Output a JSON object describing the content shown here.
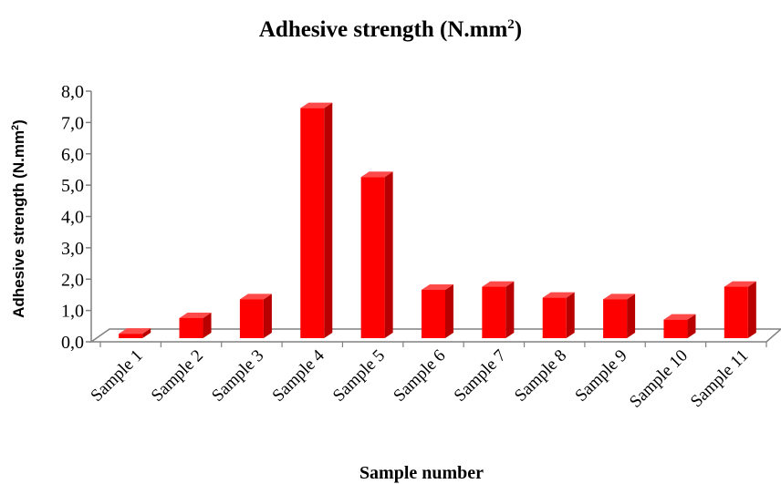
{
  "chart_data": {
    "type": "bar",
    "title_main": "Adhesive strength (N.mm",
    "title_sup": "2",
    "title_close": ")",
    "xlabel": "Sample number",
    "ylabel_main": "Adhesive strength (N.mm",
    "ylabel_sup": "2",
    "ylabel_close": ")",
    "categories": [
      "Sample 1",
      "Sample 2",
      "Sample 3",
      "Sample 4",
      "Sample 5",
      "Sample 6",
      "Sample 7",
      "Sample 8",
      "Sample 9",
      "Sample 10",
      "Sample 11"
    ],
    "values": [
      0.2,
      0.7,
      1.3,
      7.4,
      5.2,
      1.6,
      1.7,
      1.35,
      1.3,
      0.65,
      1.7
    ],
    "yticks": [
      "0,0",
      "1,0",
      "2,0",
      "3,0",
      "4,0",
      "5,0",
      "6,0",
      "7,0",
      "8,0"
    ],
    "ylim": [
      0,
      8
    ],
    "grid": false,
    "legend": "none",
    "colors": {
      "bar_front": "#ff0000",
      "bar_side": "#b80000",
      "bar_top": "#ff4a4a",
      "axis": "#808080",
      "text": "#000000"
    }
  }
}
